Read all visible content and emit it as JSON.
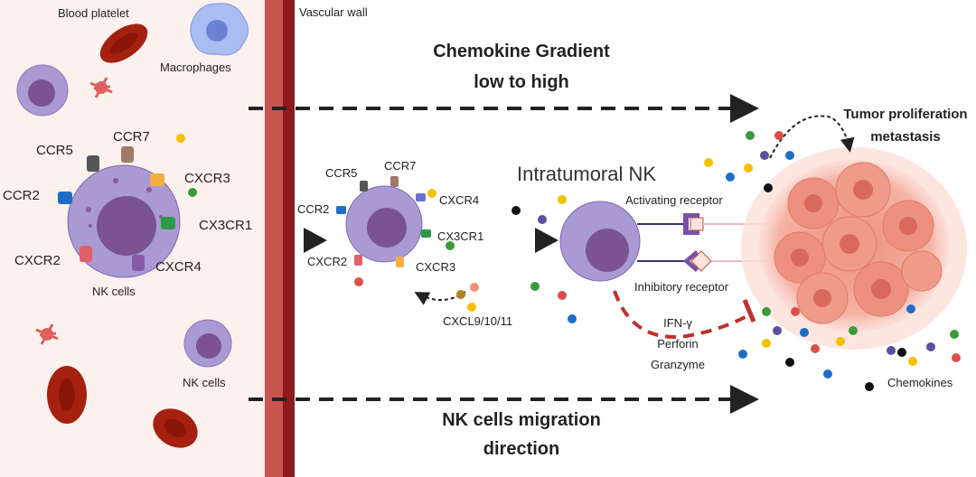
{
  "labels": {
    "blood_platelet": "Blood platelet",
    "macrophages": "Macrophages",
    "vascular_wall": "Vascular wall",
    "gradient_line1": "Chemokine Gradient",
    "gradient_line2": "low to high",
    "migration_line1": "NK cells migration",
    "migration_line2": "direction",
    "nk_cells_main": "NK cells",
    "nk_cells_lower": "NK cells",
    "intratumoral_nk": "Intratumoral NK",
    "activating_receptor": "Activating receptor",
    "inhibitory_receptor": "Inhibitory receptor",
    "tumor_line1": "Tumor proliferation",
    "tumor_line2": "metastasis",
    "chemokines": "Chemokines",
    "cxcl": "CXCL9/10/11",
    "effector1": "IFN-γ",
    "effector2": "Perforin",
    "effector3": "Granzyme"
  },
  "receptors_left": {
    "ccr5": "CCR5",
    "ccr7": "CCR7",
    "cxcr3": "CXCR3",
    "ccr2": "CCR2",
    "cx3cr1": "CX3CR1",
    "cxcr2": "CXCR2",
    "cxcr4": "CXCR4"
  },
  "receptors_middle": {
    "ccr5": "CCR5",
    "ccr7": "CCR7",
    "cxcr4": "CXCR4",
    "ccr2": "CCR2",
    "cx3cr1": "CX3CR1",
    "cxcr2": "CXCR2",
    "cxcr3": "CXCR3"
  },
  "colors": {
    "blood_bg": "#fdf1ee",
    "wall_light": "#c9544f",
    "wall_dark": "#8e1b1b",
    "nk_cell": "#a99ad3",
    "nk_nucleus": "#7a5390",
    "tumor": "#f2a090",
    "rbc": "#a5200f",
    "effector_line": "#c0302a"
  }
}
